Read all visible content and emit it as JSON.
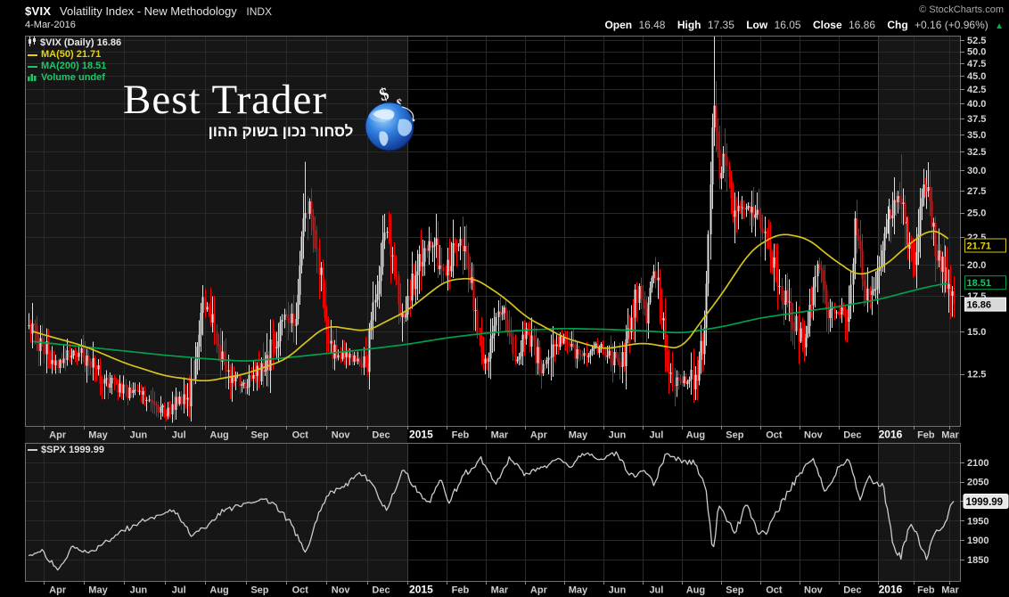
{
  "header": {
    "symbol": "$VIX",
    "title": "Volatility Index - New Methodology",
    "exchange": "INDX",
    "date": "4-Mar-2016",
    "copyright": "© StockCharts.com",
    "quote": {
      "open_label": "Open",
      "open": "16.48",
      "high_label": "High",
      "high": "17.35",
      "low_label": "Low",
      "low": "16.05",
      "close_label": "Close",
      "close": "16.86",
      "chg_label": "Chg",
      "chg": "+0.16 (+0.96%)",
      "arrow": "▲"
    }
  },
  "watermark": {
    "line1": "Best Trader",
    "line2": "לסחור נכון בשוק ההון",
    "logo_symbol_big": "$",
    "logo_symbol_small": "$"
  },
  "legend_main": {
    "vix": "$VIX (Daily) 16.86",
    "ma50": "MA(50) 21.71",
    "ma200": "MA(200) 18.51",
    "volume": "Volume undef"
  },
  "legend_spx": "$SPX 1999.99",
  "colors": {
    "up": "#dedede",
    "down": "#ff0000",
    "ma50": "#d6c31c",
    "ma200": "#00a04a",
    "spx": "#cccccc",
    "grid": "#292929",
    "year_grid": "#3c3c3c",
    "band": "#161616",
    "border": "#6f6f6f",
    "axis_text": "#d4d4d4",
    "year_text": "#ffffff",
    "badge_close_bg": "#d9d9d9",
    "ma50_text": "#e8d400",
    "ma200_text": "#1ec468",
    "arrow_green": "#00b050"
  },
  "chart_data": [
    {
      "type": "candlestick",
      "name": "$VIX (Daily)",
      "y_scale": "log",
      "y_range": [
        10.0,
        53.5
      ],
      "y_ticks": [
        "12.5",
        "15.0",
        "17.5",
        "20.0",
        "22.5",
        "25.0",
        "27.5",
        "30.0",
        "32.5",
        "35.0",
        "37.5",
        "40.0",
        "42.5",
        "45.0",
        "47.5",
        "50.0",
        "52.5"
      ],
      "x_labels": [
        "Apr",
        "May",
        "Jun",
        "Jul",
        "Aug",
        "Sep",
        "Oct",
        "Nov",
        "Dec",
        "2015",
        "Feb",
        "Mar",
        "Apr",
        "May",
        "Jun",
        "Jul",
        "Aug",
        "Sep",
        "Oct",
        "Nov",
        "Dec",
        "2016",
        "Feb",
        "Mar"
      ],
      "bold_x": [
        9,
        21
      ],
      "t_start": -0.37,
      "t_end": 23.13,
      "candles": 492,
      "last_close": 16.86,
      "close_anchors": [
        [
          -0.37,
          15.8
        ],
        [
          -0.2,
          14.6
        ],
        [
          0,
          14.0
        ],
        [
          0.35,
          13.1
        ],
        [
          0.7,
          13.9
        ],
        [
          1.0,
          13.4
        ],
        [
          1.5,
          12.2
        ],
        [
          2.0,
          11.6
        ],
        [
          2.6,
          11.3
        ],
        [
          3.05,
          10.6
        ],
        [
          3.3,
          11.3
        ],
        [
          3.6,
          11.0
        ],
        [
          3.95,
          16.9
        ],
        [
          4.15,
          15.6
        ],
        [
          4.55,
          12.4
        ],
        [
          5.0,
          12.0
        ],
        [
          5.5,
          12.9
        ],
        [
          5.95,
          16.3
        ],
        [
          6.2,
          15.1
        ],
        [
          6.45,
          24.6
        ],
        [
          6.55,
          26.3
        ],
        [
          6.7,
          22.8
        ],
        [
          7.05,
          14.2
        ],
        [
          7.5,
          13.4
        ],
        [
          8.0,
          13.2
        ],
        [
          8.5,
          23.6
        ],
        [
          8.85,
          15.5
        ],
        [
          9.05,
          17.8
        ],
        [
          9.35,
          20.5
        ],
        [
          9.65,
          22.4
        ],
        [
          9.9,
          19.0
        ],
        [
          10.15,
          20.9
        ],
        [
          10.45,
          22.0
        ],
        [
          10.8,
          14.7
        ],
        [
          11.0,
          13.3
        ],
        [
          11.45,
          16.7
        ],
        [
          11.8,
          13.1
        ],
        [
          12.0,
          15.3
        ],
        [
          12.45,
          12.8
        ],
        [
          12.95,
          14.6
        ],
        [
          13.35,
          13.4
        ],
        [
          13.75,
          14.0
        ],
        [
          14.1,
          13.8
        ],
        [
          14.45,
          12.9
        ],
        [
          14.9,
          18.2
        ],
        [
          15.1,
          16.1
        ],
        [
          15.3,
          19.7
        ],
        [
          15.65,
          12.6
        ],
        [
          15.95,
          12.1
        ],
        [
          16.35,
          12.2
        ],
        [
          16.6,
          15.3
        ],
        [
          16.72,
          28.0
        ],
        [
          16.8,
          40.7
        ],
        [
          16.92,
          30.3
        ],
        [
          17.0,
          28.4
        ],
        [
          17.07,
          31.4
        ],
        [
          17.35,
          24.4
        ],
        [
          17.6,
          26.1
        ],
        [
          17.95,
          24.5
        ],
        [
          18.15,
          22.5
        ],
        [
          18.55,
          17.5
        ],
        [
          18.95,
          15.1
        ],
        [
          19.15,
          14.5
        ],
        [
          19.45,
          20.0
        ],
        [
          19.75,
          16.1
        ],
        [
          20.05,
          16.4
        ],
        [
          20.25,
          15.8
        ],
        [
          20.42,
          24.4
        ],
        [
          20.65,
          17.9
        ],
        [
          20.95,
          18.2
        ],
        [
          21.25,
          24.0
        ],
        [
          21.63,
          27.6
        ],
        [
          21.85,
          21.8
        ],
        [
          22.05,
          20.1
        ],
        [
          22.2,
          26.5
        ],
        [
          22.37,
          28.1
        ],
        [
          22.65,
          20.5
        ],
        [
          22.85,
          19.5
        ],
        [
          23.0,
          17.3
        ],
        [
          23.13,
          16.86
        ]
      ],
      "spikes": [
        [
          6.47,
          31.1
        ],
        [
          8.52,
          25.1
        ],
        [
          16.8,
          53.3
        ],
        [
          21.63,
          32.1
        ],
        [
          22.37,
          30.0
        ]
      ],
      "series": [
        {
          "name": "MA(50)",
          "last": 21.71,
          "anchors": [
            [
              -0.37,
              15.1
            ],
            [
              0,
              14.8
            ],
            [
              1,
              14.1
            ],
            [
              2,
              13.1
            ],
            [
              3,
              12.4
            ],
            [
              4,
              12.1
            ],
            [
              5,
              12.5
            ],
            [
              6,
              13.3
            ],
            [
              7,
              15.4
            ],
            [
              8,
              15.0
            ],
            [
              9,
              16.4
            ],
            [
              10,
              18.7
            ],
            [
              10.7,
              18.9
            ],
            [
              11.5,
              17.3
            ],
            [
              12,
              16.0
            ],
            [
              13,
              14.6
            ],
            [
              14,
              13.9
            ],
            [
              15,
              14.3
            ],
            [
              16,
              13.9
            ],
            [
              17,
              17.5
            ],
            [
              17.8,
              21.4
            ],
            [
              18.5,
              22.9
            ],
            [
              19.2,
              22.4
            ],
            [
              19.8,
              20.6
            ],
            [
              20.5,
              19.0
            ],
            [
              21.2,
              19.9
            ],
            [
              21.8,
              21.6
            ],
            [
              22.4,
              23.2
            ],
            [
              22.8,
              23.0
            ],
            [
              23.13,
              21.71
            ]
          ]
        },
        {
          "name": "MA(200)",
          "last": 18.51,
          "anchors": [
            [
              -0.37,
              14.4
            ],
            [
              0,
              14.3
            ],
            [
              1,
              14.05
            ],
            [
              2,
              13.8
            ],
            [
              3,
              13.55
            ],
            [
              4,
              13.35
            ],
            [
              5,
              13.2
            ],
            [
              6,
              13.4
            ],
            [
              7,
              13.65
            ],
            [
              8,
              13.9
            ],
            [
              9,
              14.2
            ],
            [
              10,
              14.6
            ],
            [
              11,
              14.9
            ],
            [
              12,
              15.1
            ],
            [
              13,
              15.2
            ],
            [
              14,
              15.15
            ],
            [
              15,
              15.05
            ],
            [
              16,
              14.9
            ],
            [
              17,
              15.3
            ],
            [
              18,
              15.9
            ],
            [
              19,
              16.3
            ],
            [
              20,
              16.7
            ],
            [
              21,
              17.2
            ],
            [
              22,
              17.9
            ],
            [
              22.6,
              18.3
            ],
            [
              23.13,
              18.51
            ]
          ]
        }
      ],
      "badges": [
        {
          "text": "21.71",
          "value": 21.71,
          "kind": "ma50"
        },
        {
          "text": "18.51",
          "value": 18.51,
          "kind": "ma200"
        },
        {
          "text": "16.86",
          "value": 16.86,
          "kind": "close"
        }
      ]
    },
    {
      "type": "line",
      "name": "$SPX",
      "y_scale": "linear",
      "y_range": [
        1795,
        2150
      ],
      "y_ticks": [
        "1850",
        "1900",
        "1950",
        "2000",
        "2050",
        "2100"
      ],
      "last": 1999.99,
      "badge": {
        "text": "1999.99",
        "value": 1999.99
      },
      "anchors": [
        [
          -0.37,
          1860
        ],
        [
          0,
          1872
        ],
        [
          0.35,
          1820
        ],
        [
          0.7,
          1878
        ],
        [
          1.2,
          1868
        ],
        [
          1.6,
          1900
        ],
        [
          2.0,
          1924
        ],
        [
          2.4,
          1950
        ],
        [
          2.8,
          1960
        ],
        [
          3.2,
          1978
        ],
        [
          3.65,
          1915
        ],
        [
          4.0,
          1932
        ],
        [
          4.4,
          1972
        ],
        [
          4.9,
          1992
        ],
        [
          5.5,
          2008
        ],
        [
          5.9,
          1972
        ],
        [
          6.1,
          1946
        ],
        [
          6.5,
          1862
        ],
        [
          6.9,
          1998
        ],
        [
          7.1,
          2018
        ],
        [
          7.5,
          2040
        ],
        [
          7.8,
          2070
        ],
        [
          8.1,
          2053
        ],
        [
          8.5,
          1972
        ],
        [
          8.9,
          2088
        ],
        [
          9.05,
          2058
        ],
        [
          9.3,
          2023
        ],
        [
          9.55,
          1992
        ],
        [
          9.85,
          2058
        ],
        [
          10.05,
          1995
        ],
        [
          10.45,
          2068
        ],
        [
          10.9,
          2110
        ],
        [
          11.25,
          2040
        ],
        [
          11.6,
          2108
        ],
        [
          12.0,
          2068
        ],
        [
          12.45,
          2086
        ],
        [
          12.85,
          2108
        ],
        [
          13.15,
          2090
        ],
        [
          13.55,
          2126
        ],
        [
          13.9,
          2107
        ],
        [
          14.3,
          2124
        ],
        [
          14.75,
          2063
        ],
        [
          15.05,
          2077
        ],
        [
          15.3,
          2046
        ],
        [
          15.6,
          2126
        ],
        [
          15.95,
          2104
        ],
        [
          16.35,
          2096
        ],
        [
          16.6,
          2036
        ],
        [
          16.8,
          1867
        ],
        [
          16.93,
          1988
        ],
        [
          17.05,
          1972
        ],
        [
          17.35,
          1916
        ],
        [
          17.65,
          1995
        ],
        [
          17.95,
          1920
        ],
        [
          18.15,
          1923
        ],
        [
          18.65,
          2014
        ],
        [
          19.05,
          2079
        ],
        [
          19.35,
          2106
        ],
        [
          19.65,
          2022
        ],
        [
          19.95,
          2080
        ],
        [
          20.25,
          2102
        ],
        [
          20.55,
          2005
        ],
        [
          20.75,
          2060
        ],
        [
          20.95,
          2044
        ],
        [
          21.15,
          2038
        ],
        [
          21.45,
          1881
        ],
        [
          21.65,
          1859
        ],
        [
          21.9,
          1941
        ],
        [
          22.1,
          1913
        ],
        [
          22.37,
          1853
        ],
        [
          22.6,
          1918
        ],
        [
          22.9,
          1948
        ],
        [
          23.05,
          1988
        ],
        [
          23.13,
          1999.99
        ]
      ]
    }
  ]
}
